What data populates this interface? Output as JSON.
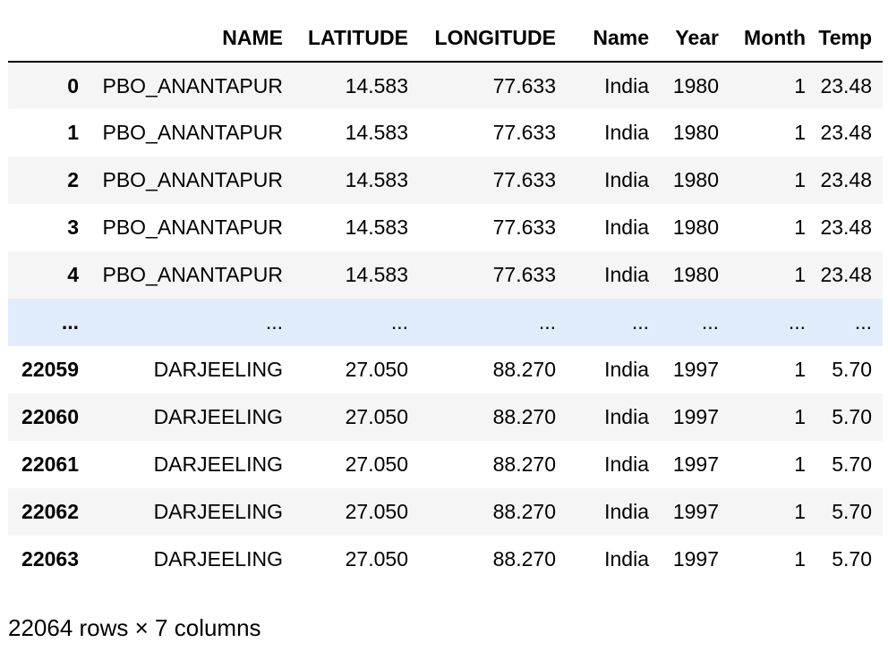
{
  "table": {
    "columns": [
      "",
      "NAME",
      "LATITUDE",
      "LONGITUDE",
      "Name",
      "Year",
      "Month",
      "Temp"
    ],
    "rows": [
      [
        "0",
        "PBO_ANANTAPUR",
        "14.583",
        "77.633",
        "India",
        "1980",
        "1",
        "23.48"
      ],
      [
        "1",
        "PBO_ANANTAPUR",
        "14.583",
        "77.633",
        "India",
        "1980",
        "1",
        "23.48"
      ],
      [
        "2",
        "PBO_ANANTAPUR",
        "14.583",
        "77.633",
        "India",
        "1980",
        "1",
        "23.48"
      ],
      [
        "3",
        "PBO_ANANTAPUR",
        "14.583",
        "77.633",
        "India",
        "1980",
        "1",
        "23.48"
      ],
      [
        "4",
        "PBO_ANANTAPUR",
        "14.583",
        "77.633",
        "India",
        "1980",
        "1",
        "23.48"
      ],
      [
        "...",
        "...",
        "...",
        "...",
        "...",
        "...",
        "...",
        "..."
      ],
      [
        "22059",
        "DARJEELING",
        "27.050",
        "88.270",
        "India",
        "1997",
        "1",
        "5.70"
      ],
      [
        "22060",
        "DARJEELING",
        "27.050",
        "88.270",
        "India",
        "1997",
        "1",
        "5.70"
      ],
      [
        "22061",
        "DARJEELING",
        "27.050",
        "88.270",
        "India",
        "1997",
        "1",
        "5.70"
      ],
      [
        "22062",
        "DARJEELING",
        "27.050",
        "88.270",
        "India",
        "1997",
        "1",
        "5.70"
      ],
      [
        "22063",
        "DARJEELING",
        "27.050",
        "88.270",
        "India",
        "1997",
        "1",
        "5.70"
      ]
    ],
    "ellipsis_row_color": "#e1ecfa",
    "striped_row_color": "#f5f5f5"
  },
  "footer": {
    "shape_text": "22064 rows × 7 columns"
  }
}
